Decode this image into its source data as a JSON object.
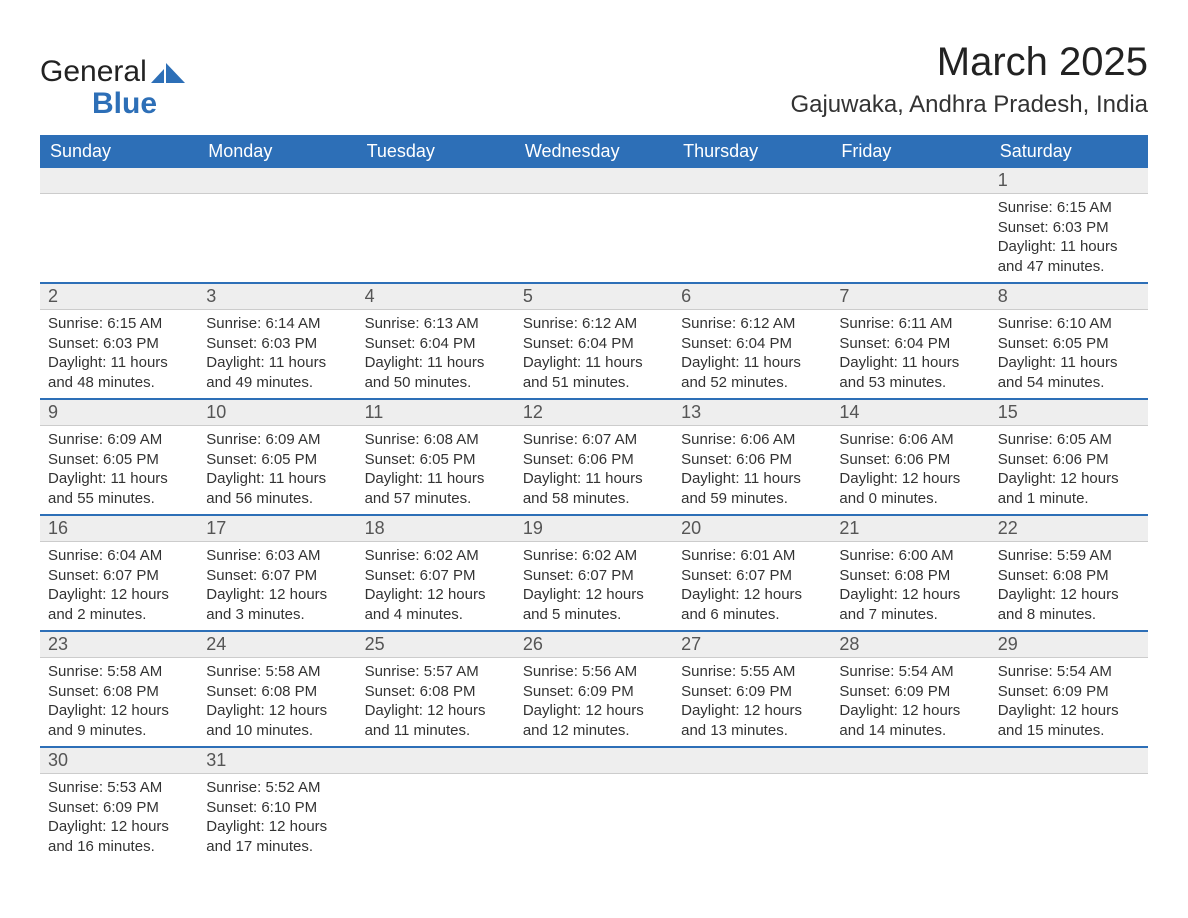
{
  "logo": {
    "line1": "General",
    "line2": "Blue"
  },
  "title": "March 2025",
  "subtitle": "Gajuwaka, Andhra Pradesh, India",
  "colors": {
    "header_bg": "#2d6fb7",
    "header_text": "#ffffff",
    "daynum_bg": "#eeeeee",
    "border_blue": "#2d6fb7",
    "text": "#333333",
    "logo_blue": "#2d6fb7"
  },
  "day_headers": [
    "Sunday",
    "Monday",
    "Tuesday",
    "Wednesday",
    "Thursday",
    "Friday",
    "Saturday"
  ],
  "weeks": [
    [
      {
        "empty": true
      },
      {
        "empty": true
      },
      {
        "empty": true
      },
      {
        "empty": true
      },
      {
        "empty": true
      },
      {
        "empty": true
      },
      {
        "day": "1",
        "sunrise": "Sunrise: 6:15 AM",
        "sunset": "Sunset: 6:03 PM",
        "daylight1": "Daylight: 11 hours",
        "daylight2": "and 47 minutes."
      }
    ],
    [
      {
        "day": "2",
        "sunrise": "Sunrise: 6:15 AM",
        "sunset": "Sunset: 6:03 PM",
        "daylight1": "Daylight: 11 hours",
        "daylight2": "and 48 minutes."
      },
      {
        "day": "3",
        "sunrise": "Sunrise: 6:14 AM",
        "sunset": "Sunset: 6:03 PM",
        "daylight1": "Daylight: 11 hours",
        "daylight2": "and 49 minutes."
      },
      {
        "day": "4",
        "sunrise": "Sunrise: 6:13 AM",
        "sunset": "Sunset: 6:04 PM",
        "daylight1": "Daylight: 11 hours",
        "daylight2": "and 50 minutes."
      },
      {
        "day": "5",
        "sunrise": "Sunrise: 6:12 AM",
        "sunset": "Sunset: 6:04 PM",
        "daylight1": "Daylight: 11 hours",
        "daylight2": "and 51 minutes."
      },
      {
        "day": "6",
        "sunrise": "Sunrise: 6:12 AM",
        "sunset": "Sunset: 6:04 PM",
        "daylight1": "Daylight: 11 hours",
        "daylight2": "and 52 minutes."
      },
      {
        "day": "7",
        "sunrise": "Sunrise: 6:11 AM",
        "sunset": "Sunset: 6:04 PM",
        "daylight1": "Daylight: 11 hours",
        "daylight2": "and 53 minutes."
      },
      {
        "day": "8",
        "sunrise": "Sunrise: 6:10 AM",
        "sunset": "Sunset: 6:05 PM",
        "daylight1": "Daylight: 11 hours",
        "daylight2": "and 54 minutes."
      }
    ],
    [
      {
        "day": "9",
        "sunrise": "Sunrise: 6:09 AM",
        "sunset": "Sunset: 6:05 PM",
        "daylight1": "Daylight: 11 hours",
        "daylight2": "and 55 minutes."
      },
      {
        "day": "10",
        "sunrise": "Sunrise: 6:09 AM",
        "sunset": "Sunset: 6:05 PM",
        "daylight1": "Daylight: 11 hours",
        "daylight2": "and 56 minutes."
      },
      {
        "day": "11",
        "sunrise": "Sunrise: 6:08 AM",
        "sunset": "Sunset: 6:05 PM",
        "daylight1": "Daylight: 11 hours",
        "daylight2": "and 57 minutes."
      },
      {
        "day": "12",
        "sunrise": "Sunrise: 6:07 AM",
        "sunset": "Sunset: 6:06 PM",
        "daylight1": "Daylight: 11 hours",
        "daylight2": "and 58 minutes."
      },
      {
        "day": "13",
        "sunrise": "Sunrise: 6:06 AM",
        "sunset": "Sunset: 6:06 PM",
        "daylight1": "Daylight: 11 hours",
        "daylight2": "and 59 minutes."
      },
      {
        "day": "14",
        "sunrise": "Sunrise: 6:06 AM",
        "sunset": "Sunset: 6:06 PM",
        "daylight1": "Daylight: 12 hours",
        "daylight2": "and 0 minutes."
      },
      {
        "day": "15",
        "sunrise": "Sunrise: 6:05 AM",
        "sunset": "Sunset: 6:06 PM",
        "daylight1": "Daylight: 12 hours",
        "daylight2": "and 1 minute."
      }
    ],
    [
      {
        "day": "16",
        "sunrise": "Sunrise: 6:04 AM",
        "sunset": "Sunset: 6:07 PM",
        "daylight1": "Daylight: 12 hours",
        "daylight2": "and 2 minutes."
      },
      {
        "day": "17",
        "sunrise": "Sunrise: 6:03 AM",
        "sunset": "Sunset: 6:07 PM",
        "daylight1": "Daylight: 12 hours",
        "daylight2": "and 3 minutes."
      },
      {
        "day": "18",
        "sunrise": "Sunrise: 6:02 AM",
        "sunset": "Sunset: 6:07 PM",
        "daylight1": "Daylight: 12 hours",
        "daylight2": "and 4 minutes."
      },
      {
        "day": "19",
        "sunrise": "Sunrise: 6:02 AM",
        "sunset": "Sunset: 6:07 PM",
        "daylight1": "Daylight: 12 hours",
        "daylight2": "and 5 minutes."
      },
      {
        "day": "20",
        "sunrise": "Sunrise: 6:01 AM",
        "sunset": "Sunset: 6:07 PM",
        "daylight1": "Daylight: 12 hours",
        "daylight2": "and 6 minutes."
      },
      {
        "day": "21",
        "sunrise": "Sunrise: 6:00 AM",
        "sunset": "Sunset: 6:08 PM",
        "daylight1": "Daylight: 12 hours",
        "daylight2": "and 7 minutes."
      },
      {
        "day": "22",
        "sunrise": "Sunrise: 5:59 AM",
        "sunset": "Sunset: 6:08 PM",
        "daylight1": "Daylight: 12 hours",
        "daylight2": "and 8 minutes."
      }
    ],
    [
      {
        "day": "23",
        "sunrise": "Sunrise: 5:58 AM",
        "sunset": "Sunset: 6:08 PM",
        "daylight1": "Daylight: 12 hours",
        "daylight2": "and 9 minutes."
      },
      {
        "day": "24",
        "sunrise": "Sunrise: 5:58 AM",
        "sunset": "Sunset: 6:08 PM",
        "daylight1": "Daylight: 12 hours",
        "daylight2": "and 10 minutes."
      },
      {
        "day": "25",
        "sunrise": "Sunrise: 5:57 AM",
        "sunset": "Sunset: 6:08 PM",
        "daylight1": "Daylight: 12 hours",
        "daylight2": "and 11 minutes."
      },
      {
        "day": "26",
        "sunrise": "Sunrise: 5:56 AM",
        "sunset": "Sunset: 6:09 PM",
        "daylight1": "Daylight: 12 hours",
        "daylight2": "and 12 minutes."
      },
      {
        "day": "27",
        "sunrise": "Sunrise: 5:55 AM",
        "sunset": "Sunset: 6:09 PM",
        "daylight1": "Daylight: 12 hours",
        "daylight2": "and 13 minutes."
      },
      {
        "day": "28",
        "sunrise": "Sunrise: 5:54 AM",
        "sunset": "Sunset: 6:09 PM",
        "daylight1": "Daylight: 12 hours",
        "daylight2": "and 14 minutes."
      },
      {
        "day": "29",
        "sunrise": "Sunrise: 5:54 AM",
        "sunset": "Sunset: 6:09 PM",
        "daylight1": "Daylight: 12 hours",
        "daylight2": "and 15 minutes."
      }
    ],
    [
      {
        "day": "30",
        "sunrise": "Sunrise: 5:53 AM",
        "sunset": "Sunset: 6:09 PM",
        "daylight1": "Daylight: 12 hours",
        "daylight2": "and 16 minutes."
      },
      {
        "day": "31",
        "sunrise": "Sunrise: 5:52 AM",
        "sunset": "Sunset: 6:10 PM",
        "daylight1": "Daylight: 12 hours",
        "daylight2": "and 17 minutes."
      },
      {
        "empty": true
      },
      {
        "empty": true
      },
      {
        "empty": true
      },
      {
        "empty": true
      },
      {
        "empty": true
      }
    ]
  ]
}
